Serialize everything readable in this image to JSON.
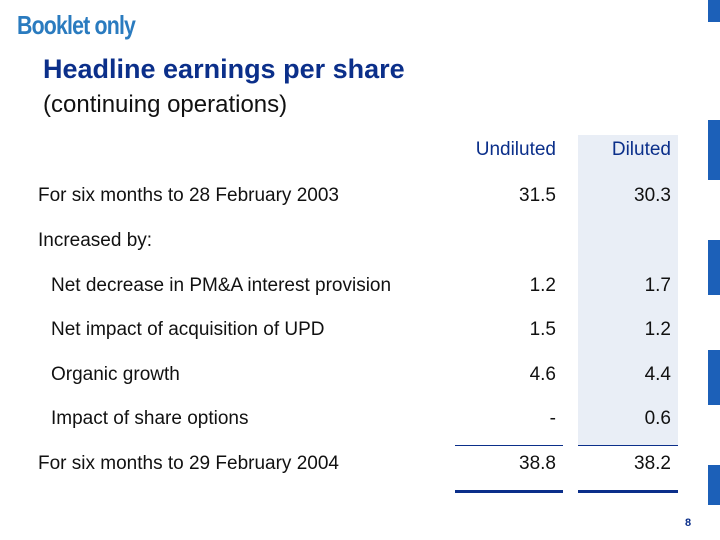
{
  "header": {
    "tag": "Booklet only",
    "title": "Headline earnings per share",
    "subtitle": "(continuing operations)"
  },
  "table": {
    "columns": [
      "Undiluted",
      "Diluted"
    ],
    "rows": [
      {
        "label": "For six months to 28 February 2003",
        "undiluted": "31.5",
        "diluted": "30.3"
      },
      {
        "label": "Increased by:",
        "undiluted": "",
        "diluted": ""
      },
      {
        "label": "Net decrease in PM&A interest provision",
        "undiluted": "1.2",
        "diluted": "1.7"
      },
      {
        "label": "Net impact of acquisition of UPD",
        "undiluted": "1.5",
        "diluted": "1.2"
      },
      {
        "label": "Organic growth",
        "undiluted": "4.6",
        "diluted": "4.4"
      },
      {
        "label": "Impact of share options",
        "undiluted": "-",
        "diluted": "0.6"
      },
      {
        "label": "For six months to 29 February 2004",
        "undiluted": "38.8",
        "diluted": "38.2"
      }
    ]
  },
  "footer": {
    "page_number": "8"
  },
  "colors": {
    "accent": "#1c60b8",
    "title": "#0b2f8a",
    "tag": "#2a7bbf"
  }
}
